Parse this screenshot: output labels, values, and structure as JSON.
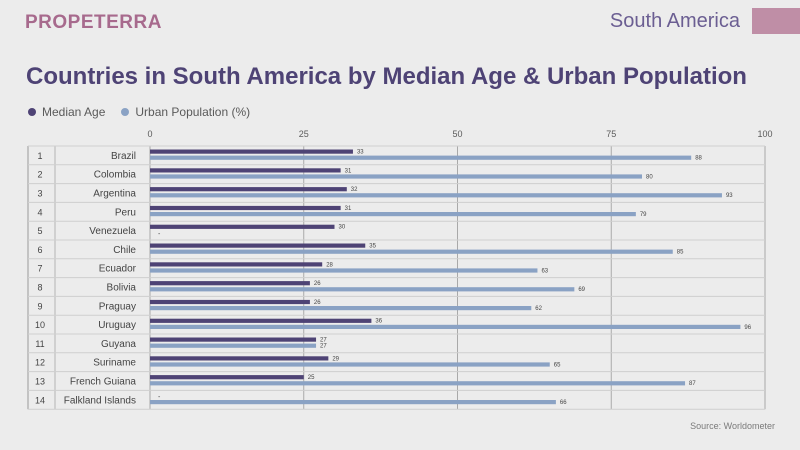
{
  "header": {
    "brand": "PROPETERRA",
    "region": "South America"
  },
  "colors": {
    "median_age": "#4e4375",
    "urban_population": "#8aa2c4",
    "brand": "#a76a8d",
    "title": "#4e4375",
    "corner_block": "#bf8ea6"
  },
  "footer": {
    "source": "Source: Worldometer"
  },
  "chart_data": {
    "type": "bar",
    "orientation": "horizontal",
    "title": "Countries in South America by Median Age & Urban Population",
    "xlim": [
      0,
      100
    ],
    "x_ticks": [
      0,
      25,
      50,
      75,
      100
    ],
    "grid": true,
    "legend_position": "top-left",
    "ranks": [
      1,
      2,
      3,
      4,
      5,
      6,
      7,
      8,
      9,
      10,
      11,
      12,
      13,
      14
    ],
    "categories": [
      "Brazil",
      "Colombia",
      "Argentina",
      "Peru",
      "Venezuela",
      "Chile",
      "Ecuador",
      "Bolivia",
      "Praguay",
      "Uruguay",
      "Guyana",
      "Suriname",
      "French Guiana",
      "Falkland Islands"
    ],
    "series": [
      {
        "name": "Median Age",
        "values": [
          33,
          31,
          32,
          31,
          30,
          35,
          28,
          26,
          26,
          36,
          27,
          29,
          25,
          null
        ],
        "labels": [
          "33",
          "31",
          "32",
          "31",
          "30",
          "35",
          "28",
          "26",
          "26",
          "36",
          "27",
          "29",
          "25",
          "-"
        ]
      },
      {
        "name": "Urban Population (%)",
        "values": [
          88,
          80,
          93,
          79,
          null,
          85,
          63,
          69,
          62,
          96,
          27,
          65,
          87,
          66
        ],
        "labels": [
          "88",
          "80",
          "93",
          "79",
          "-",
          "85",
          "63",
          "69",
          "62",
          "96",
          "27",
          "65",
          "87",
          "66"
        ]
      }
    ]
  }
}
